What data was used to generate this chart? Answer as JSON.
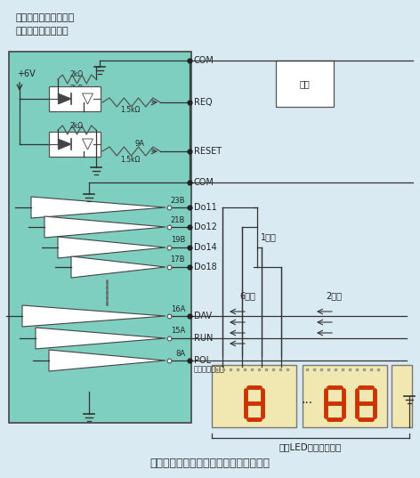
{
  "bg_color": "#daeaf2",
  "panel_bg": "#7ecfbf",
  "panel_border": "#444444",
  "led_bg": "#f0e8b0",
  "led_border": "#666666",
  "title_line1": "デジタルパネルメータ",
  "title_line2": "（形式：４７ＤＶ）",
  "caption": "図５　大形ＬＥＤ表示ユニットとの接続",
  "line_color": "#333333",
  "text_color": "#222222",
  "dot_color": "#222222",
  "short_label": "短絡",
  "digit_labels": [
    "6桁目",
    "2桁目"
  ],
  "unit_label": "大形LED表示ユニット",
  "digit1_label": "1桁目",
  "pol_note": "（極性＋、－）",
  "vplus_label": "+6V",
  "seg_color": "#cc3300",
  "resistor1": "2kΩ",
  "resistor2": "1.5kΩ"
}
